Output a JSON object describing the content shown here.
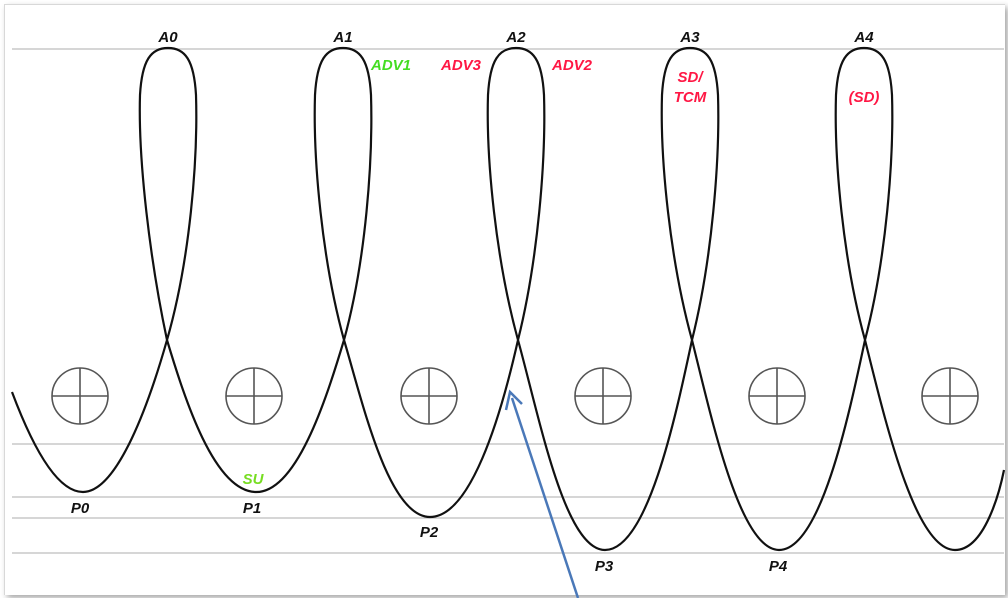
{
  "apogee_labels": [
    "A0",
    "A1",
    "A2",
    "A3",
    "A4"
  ],
  "perigee_labels": [
    "P0",
    "P1",
    "P2",
    "P3",
    "P4"
  ],
  "annotations": {
    "su": "SU",
    "adv1": "ADV1",
    "adv3": "ADV3",
    "adv2": "ADV2",
    "sd_tcm_line1": "SD/",
    "sd_tcm_line2": "TCM",
    "sd_paren": "(SD)"
  },
  "colors": {
    "curve": "#111111",
    "guide_lines": "#c8c8c8",
    "label_text": "#111111",
    "su": "#77dd22",
    "adv1": "#44dd22",
    "red_annotation": "#ff1744",
    "arrow": "#4a78b8",
    "earth_symbol": "#555555"
  },
  "icons": [
    "earth-crosshair-icon",
    "arrow-icon"
  ]
}
